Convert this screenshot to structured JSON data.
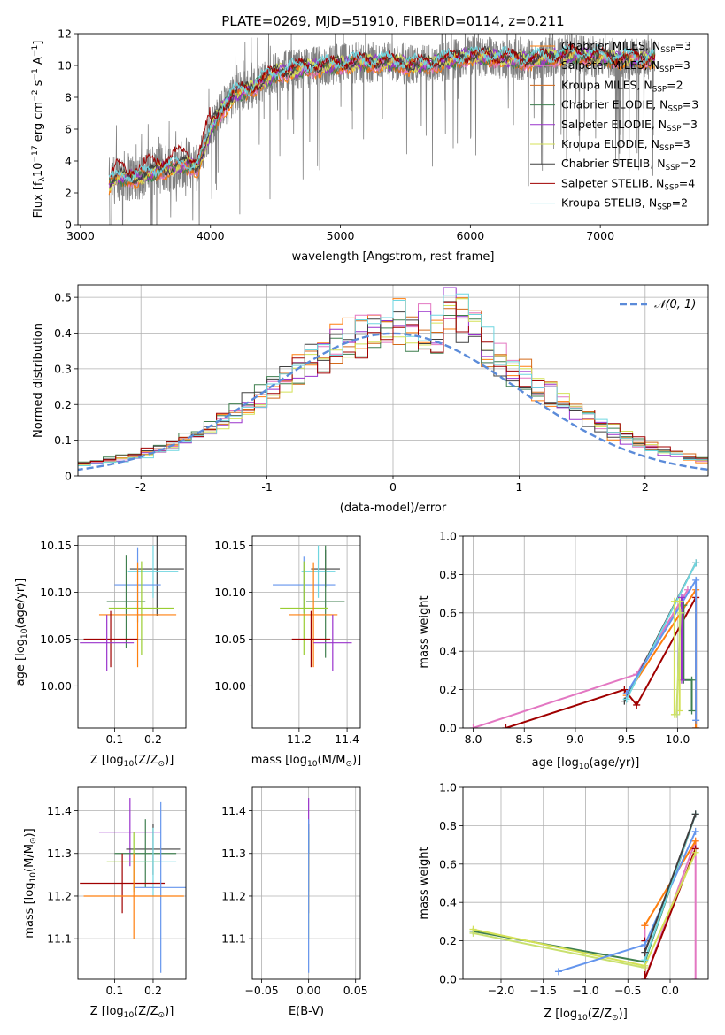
{
  "colors": {
    "chabrier_miles": "#ff7f0e",
    "salpeter_miles": "#e377c2",
    "kroupa_miles": "#d46a1a",
    "chabrier_elodie": "#3f7f4f",
    "salpeter_elodie": "#9932cc",
    "kroupa_elodie": "#d4e157",
    "chabrier_stelib": "#404040",
    "salpeter_stelib": "#a00000",
    "kroupa_stelib": "#6fd6e0",
    "data": "#808080",
    "normal_curve": "#5b8bd9",
    "extra_blue": "#6495ed",
    "extra_green": "#9acd32",
    "extra_yellow": "#c8e06e"
  },
  "chart_data": [
    {
      "type": "line",
      "title": "PLATE=0269, MJD=51910, FIBERID=0114, z=0.211",
      "xlabel": "wavelength [Angstrom, rest frame]",
      "ylabel_parts": {
        "a": "Flux [f",
        "sub": "λ",
        "b": "10",
        "sup1": "−17",
        "c": " erg cm",
        "sup2": "−2",
        "d": " s",
        "sup3": "−1",
        "e": " A",
        "sup4": "−1",
        "f": "]"
      },
      "xlim": [
        2980,
        7830
      ],
      "ylim": [
        0,
        12
      ],
      "xticks": [
        3000,
        4000,
        5000,
        6000,
        7000
      ],
      "yticks": [
        0,
        2,
        4,
        6,
        8,
        10,
        12
      ],
      "legend_position": "right",
      "legend": [
        {
          "name": "Chabrier MILES",
          "n": "3",
          "color_key": "chabrier_miles"
        },
        {
          "name": "Salpeter MILES",
          "n": "3",
          "color_key": "salpeter_miles"
        },
        {
          "name": "Kroupa MILES",
          "n": "2",
          "color_key": "kroupa_miles"
        },
        {
          "name": "Chabrier ELODIE",
          "n": "3",
          "color_key": "chabrier_elodie"
        },
        {
          "name": "Salpeter ELODIE",
          "n": "3",
          "color_key": "salpeter_elodie"
        },
        {
          "name": "Kroupa ELODIE",
          "n": "3",
          "color_key": "kroupa_elodie"
        },
        {
          "name": "Chabrier STELIB",
          "n": "2",
          "color_key": "chabrier_stelib"
        },
        {
          "name": "Salpeter STELIB",
          "n": "4",
          "color_key": "salpeter_stelib"
        },
        {
          "name": "Kroupa STELIB",
          "n": "2",
          "color_key": "kroupa_stelib"
        }
      ],
      "legend_n_prefix": "N",
      "legend_n_sub": "SSP",
      "model_envelope": {
        "x": [
          3220,
          3300,
          3400,
          3500,
          3600,
          3700,
          3800,
          3900,
          4000,
          4100,
          4200,
          4300,
          4400,
          4500,
          4600,
          4800,
          5000,
          5200,
          5400,
          5600,
          5800,
          6000,
          6200,
          6400,
          6600,
          6800,
          7000,
          7200,
          7400
        ],
        "y": [
          2.6,
          3.1,
          3.0,
          3.2,
          3.5,
          3.7,
          3.9,
          3.7,
          6.0,
          7.4,
          8.3,
          8.5,
          9.0,
          9.5,
          9.7,
          9.9,
          10.1,
          10.2,
          10.2,
          10.0,
          10.3,
          10.6,
          10.5,
          10.3,
          10.5,
          10.7,
          10.5,
          10.4,
          10.4
        ]
      },
      "data_range": [
        3220,
        7420
      ]
    },
    {
      "type": "histogram",
      "xlabel": "(data-model)/error",
      "ylabel": "Normed distribution",
      "xlim": [
        -2.5,
        2.5
      ],
      "ylim": [
        0,
        0.535
      ],
      "xticks": [
        -2,
        -1,
        0,
        1,
        2
      ],
      "yticks": [
        0.0,
        0.1,
        0.2,
        0.3,
        0.4,
        0.5
      ],
      "bin_width": 0.1,
      "legend_label": "𝒩(0, 1)",
      "legend_position": "top-right",
      "grid": true
    },
    {
      "type": "errorbar",
      "xlabel_parts": {
        "a": "Z [log",
        "sub": "10",
        "b": "(Z/Z",
        "sub2": "⊙",
        "c": ")]"
      },
      "ylabel_parts": {
        "a": "age  [log",
        "sub": "10",
        "b": "(age/yr)]"
      },
      "xlim": [
        0.005,
        0.285
      ],
      "ylim": [
        9.955,
        10.16
      ],
      "xticks": [
        "0.1",
        "0.2"
      ],
      "xtick_values": [
        0.1,
        0.2
      ],
      "yticks": [
        "10.00",
        "10.05",
        "10.10",
        "10.15"
      ],
      "ytick_values": [
        10.0,
        10.05,
        10.1,
        10.15
      ],
      "grid": true,
      "points": [
        {
          "x": 0.21,
          "xe": 0.07,
          "y": 10.125,
          "ye": 0.05,
          "c": "chabrier_stelib"
        },
        {
          "x": 0.2,
          "xe": 0.065,
          "y": 10.122,
          "ye": 0.028,
          "c": "kroupa_stelib"
        },
        {
          "x": 0.16,
          "xe": 0.06,
          "y": 10.108,
          "ye": 0.04,
          "c": "extra_blue"
        },
        {
          "x": 0.13,
          "xe": 0.05,
          "y": 10.09,
          "ye": 0.05,
          "c": "chabrier_elodie"
        },
        {
          "x": 0.17,
          "xe": 0.085,
          "y": 10.083,
          "ye": 0.05,
          "c": "extra_green"
        },
        {
          "x": 0.16,
          "xe": 0.1,
          "y": 10.076,
          "ye": 0.056,
          "c": "chabrier_miles"
        },
        {
          "x": 0.09,
          "xe": 0.07,
          "y": 10.05,
          "ye": 0.03,
          "c": "salpeter_stelib"
        },
        {
          "x": 0.08,
          "xe": 0.07,
          "y": 10.046,
          "ye": 0.03,
          "c": "salpeter_elodie"
        }
      ]
    },
    {
      "type": "errorbar",
      "xlabel_parts": {
        "a": "mass [log",
        "sub": "10",
        "b": "(M/M",
        "sub2": "⊙",
        "c": ")]"
      },
      "xlim": [
        11.005,
        11.455
      ],
      "ylim": [
        9.955,
        10.16
      ],
      "xticks": [
        "11.2",
        "11.4"
      ],
      "xtick_values": [
        11.2,
        11.4
      ],
      "yticks": [
        "10.00",
        "10.05",
        "10.10",
        "10.15"
      ],
      "ytick_values": [
        10.0,
        10.05,
        10.1,
        10.15
      ],
      "grid": true,
      "points": [
        {
          "x": 11.31,
          "xe": 0.06,
          "y": 10.125,
          "ye": 0.02,
          "c": "chabrier_stelib"
        },
        {
          "x": 11.28,
          "xe": 0.07,
          "y": 10.122,
          "ye": 0.028,
          "c": "kroupa_stelib"
        },
        {
          "x": 11.22,
          "xe": 0.13,
          "y": 10.108,
          "ye": 0.03,
          "c": "extra_blue"
        },
        {
          "x": 11.31,
          "xe": 0.08,
          "y": 10.09,
          "ye": 0.06,
          "c": "chabrier_elodie"
        },
        {
          "x": 11.22,
          "xe": 0.1,
          "y": 10.083,
          "ye": 0.05,
          "c": "extra_green"
        },
        {
          "x": 11.26,
          "xe": 0.1,
          "y": 10.076,
          "ye": 0.056,
          "c": "chabrier_miles"
        },
        {
          "x": 11.25,
          "xe": 0.08,
          "y": 10.05,
          "ye": 0.03,
          "c": "salpeter_stelib"
        },
        {
          "x": 11.34,
          "xe": 0.08,
          "y": 10.046,
          "ye": 0.03,
          "c": "salpeter_elodie"
        }
      ]
    },
    {
      "type": "line",
      "xlabel_parts": {
        "a": "age  [log",
        "sub": "10",
        "b": "(age/yr)]"
      },
      "ylabel": "mass weight",
      "xlim": [
        7.9,
        10.3
      ],
      "ylim": [
        0,
        1
      ],
      "xticks": [
        "8.0",
        "8.5",
        "9.0",
        "9.5",
        "10.0"
      ],
      "xtick_values": [
        8.0,
        8.5,
        9.0,
        9.5,
        10.0
      ],
      "yticks": [
        "0.0",
        "0.2",
        "0.4",
        "0.6",
        "0.8",
        "1.0"
      ],
      "ytick_values": [
        0,
        0.2,
        0.4,
        0.6,
        0.8,
        1.0
      ],
      "grid": true,
      "series": [
        {
          "c": "salpeter_miles",
          "x": [
            8.0,
            9.6,
            10.1
          ],
          "y": [
            0.0,
            0.28,
            0.72
          ]
        },
        {
          "c": "salpeter_stelib",
          "x": [
            8.32,
            9.48,
            9.6,
            10.18,
            10.18
          ],
          "y": [
            0.0,
            0.2,
            0.12,
            0.68,
            0.0
          ]
        },
        {
          "c": "chabrier_miles",
          "x": [
            9.5,
            10.18,
            10.18
          ],
          "y": [
            0.17,
            0.72,
            0.0
          ]
        },
        {
          "c": "chabrier_stelib",
          "x": [
            9.48,
            10.18
          ],
          "y": [
            0.14,
            0.86
          ]
        },
        {
          "c": "kroupa_stelib",
          "x": [
            9.5,
            10.18
          ],
          "y": [
            0.15,
            0.86
          ]
        },
        {
          "c": "extra_blue",
          "x": [
            9.5,
            10.18,
            10.18
          ],
          "y": [
            0.18,
            0.77,
            0.04
          ]
        },
        {
          "c": "chabrier_elodie",
          "x": [
            10.06,
            10.06,
            10.14,
            10.14
          ],
          "y": [
            0.64,
            0.25,
            0.25,
            0.09
          ]
        },
        {
          "c": "salpeter_elodie",
          "x": [
            10.04,
            10.04
          ],
          "y": [
            0.68,
            0.25
          ]
        },
        {
          "c": "kroupa_elodie",
          "x": [
            9.97,
            9.97,
            10.02,
            10.02
          ],
          "y": [
            0.07,
            0.66,
            0.66,
            0.09
          ]
        },
        {
          "c": "extra_yellow",
          "x": [
            9.99,
            10.03
          ],
          "y": [
            0.07,
            0.6
          ]
        }
      ]
    },
    {
      "type": "errorbar",
      "xlabel_parts": {
        "a": "Z [log",
        "sub": "10",
        "b": "(Z/Z",
        "sub2": "⊙",
        "c": ")]"
      },
      "ylabel_parts": {
        "a": "mass [log",
        "sub": "10",
        "b": "(M/M",
        "sub2": "⊙",
        "c": ")]"
      },
      "xlim": [
        0.005,
        0.285
      ],
      "ylim": [
        11.005,
        11.455
      ],
      "xticks": [
        "0.1",
        "0.2"
      ],
      "xtick_values": [
        0.1,
        0.2
      ],
      "yticks": [
        "11.1",
        "11.2",
        "11.3",
        "11.4"
      ],
      "ytick_values": [
        11.1,
        11.2,
        11.3,
        11.4
      ],
      "grid": true,
      "points": [
        {
          "x": 0.14,
          "xe": 0.08,
          "y": 11.35,
          "ye": 0.08,
          "c": "salpeter_elodie"
        },
        {
          "x": 0.2,
          "xe": 0.07,
          "y": 11.31,
          "ye": 0.06,
          "c": "chabrier_stelib"
        },
        {
          "x": 0.18,
          "xe": 0.08,
          "y": 11.3,
          "ye": 0.08,
          "c": "chabrier_elodie"
        },
        {
          "x": 0.15,
          "xe": 0.07,
          "y": 11.28,
          "ye": 0.07,
          "c": "extra_green"
        },
        {
          "x": 0.2,
          "xe": 0.06,
          "y": 11.28,
          "ye": 0.08,
          "c": "kroupa_stelib"
        },
        {
          "x": 0.12,
          "xe": 0.11,
          "y": 11.23,
          "ye": 0.07,
          "c": "salpeter_stelib"
        },
        {
          "x": 0.22,
          "xe": 0.07,
          "y": 11.22,
          "ye": 0.2,
          "c": "extra_blue"
        },
        {
          "x": 0.15,
          "xe": 0.13,
          "y": 11.2,
          "ye": 0.1,
          "c": "chabrier_miles"
        }
      ]
    },
    {
      "type": "errorbar",
      "xlabel": "E(B-V)",
      "xlim": [
        -0.06,
        0.055
      ],
      "ylim": [
        11.005,
        11.455
      ],
      "xticks": [
        "−0.05",
        "0.00",
        "0.05"
      ],
      "xtick_values": [
        -0.05,
        0.0,
        0.05
      ],
      "yticks": [
        "11.1",
        "11.2",
        "11.3",
        "11.4"
      ],
      "ytick_values": [
        11.1,
        11.2,
        11.3,
        11.4
      ],
      "grid": true,
      "points": [
        {
          "x": 0.0,
          "xe": 0.0,
          "y": 11.35,
          "ye": 0.08,
          "c": "salpeter_elodie"
        },
        {
          "x": 0.0,
          "xe": 0.0,
          "y": 11.31,
          "ye": 0.06,
          "c": "chabrier_stelib"
        },
        {
          "x": 0.0,
          "xe": 0.0,
          "y": 11.28,
          "ye": 0.07,
          "c": "chabrier_elodie"
        },
        {
          "x": 0.0,
          "xe": 0.0,
          "y": 11.23,
          "ye": 0.07,
          "c": "salpeter_stelib"
        },
        {
          "x": 0.0,
          "xe": 0.0,
          "y": 11.2,
          "ye": 0.1,
          "c": "kroupa_elodie"
        },
        {
          "x": 0.0,
          "xe": 0.0,
          "y": 11.2,
          "ye": 0.18,
          "c": "extra_blue"
        }
      ]
    },
    {
      "type": "line",
      "xlabel_parts": {
        "a": "Z [log",
        "sub": "10",
        "b": "(Z/Z",
        "sub2": "⊙",
        "c": ")]"
      },
      "ylabel": "mass weight",
      "xlim": [
        -2.45,
        0.45
      ],
      "ylim": [
        0,
        1
      ],
      "xticks": [
        "−2.0",
        "−1.5",
        "−1.0",
        "−0.5",
        "0.0"
      ],
      "xtick_values": [
        -2.0,
        -1.5,
        -1.0,
        -0.5,
        0.0
      ],
      "yticks": [
        "0.0",
        "0.2",
        "0.4",
        "0.6",
        "0.8",
        "1.0"
      ],
      "ytick_values": [
        0,
        0.2,
        0.4,
        0.6,
        0.8,
        1.0
      ],
      "grid": true,
      "series": [
        {
          "c": "salpeter_miles",
          "x": [
            -0.3,
            -0.3,
            0.3,
            0.3
          ],
          "y": [
            0.28,
            0.0,
            0.72,
            0.0
          ]
        },
        {
          "c": "chabrier_miles",
          "x": [
            -0.3,
            0.3
          ],
          "y": [
            0.28,
            0.72
          ]
        },
        {
          "c": "salpeter_stelib",
          "x": [
            -0.3,
            -0.3,
            0.3
          ],
          "y": [
            0.2,
            0.0,
            0.68
          ]
        },
        {
          "c": "chabrier_elodie",
          "x": [
            -2.33,
            -0.3,
            0.3
          ],
          "y": [
            0.25,
            0.09,
            0.86
          ]
        },
        {
          "c": "kroupa_elodie",
          "x": [
            -2.33,
            -0.3,
            0.3
          ],
          "y": [
            0.26,
            0.07,
            0.66
          ]
        },
        {
          "c": "extra_yellow",
          "x": [
            -2.33,
            -0.3
          ],
          "y": [
            0.24,
            0.06
          ]
        },
        {
          "c": "extra_blue",
          "x": [
            -1.32,
            -0.3,
            0.3
          ],
          "y": [
            0.04,
            0.18,
            0.77
          ]
        },
        {
          "c": "kroupa_stelib",
          "x": [
            -0.3,
            0.3
          ],
          "y": [
            0.1,
            0.86
          ]
        },
        {
          "c": "chabrier_stelib",
          "x": [
            -0.3,
            0.3
          ],
          "y": [
            0.14,
            0.86
          ]
        }
      ]
    }
  ]
}
